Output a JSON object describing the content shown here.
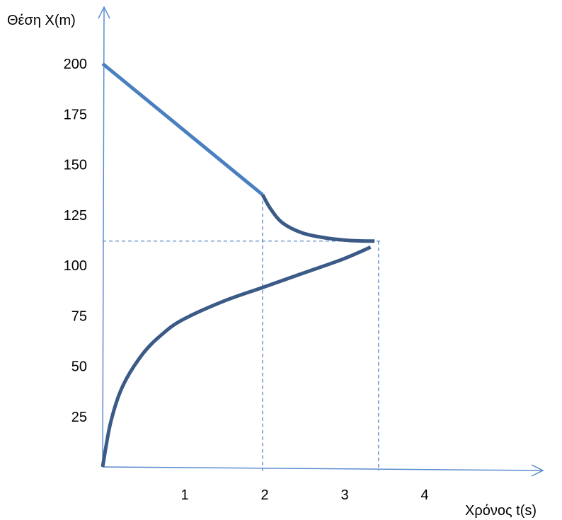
{
  "chart_data": {
    "type": "line",
    "ylabel": "Θέση X(m)",
    "xlabel": "Χρόνος t(s)",
    "xlim": [
      0,
      4.3
    ],
    "ylim": [
      0,
      210
    ],
    "x_ticks": [
      "1",
      "2",
      "3",
      "4"
    ],
    "y_ticks": [
      "25",
      "50",
      "75",
      "100",
      "125",
      "150",
      "175",
      "200"
    ],
    "series": [
      {
        "color": "#4a7fc0",
        "points": [
          [
            0,
            200
          ],
          [
            2,
            135
          ]
        ]
      },
      {
        "color": "#3b5a86",
        "points": [
          [
            2,
            135
          ],
          [
            2.1,
            128
          ],
          [
            2.25,
            121
          ],
          [
            2.5,
            116
          ],
          [
            2.8,
            113.5
          ],
          [
            3.1,
            112.3
          ],
          [
            3.4,
            112
          ]
        ]
      },
      {
        "color": "#3b5a86",
        "points": [
          [
            0,
            0
          ],
          [
            0.1,
            22
          ],
          [
            0.25,
            40
          ],
          [
            0.5,
            56
          ],
          [
            0.75,
            66
          ],
          [
            1.0,
            73
          ],
          [
            1.5,
            82
          ],
          [
            2.0,
            89
          ],
          [
            2.5,
            96
          ],
          [
            3.0,
            103
          ],
          [
            3.35,
            109
          ]
        ]
      }
    ],
    "guides": {
      "horizontal_y": 112,
      "horizontal_to_x": 3.45,
      "vertical_x": [
        2,
        3.45
      ],
      "color": "#4a7fc0"
    },
    "axis_color": "#5b8dcc"
  }
}
